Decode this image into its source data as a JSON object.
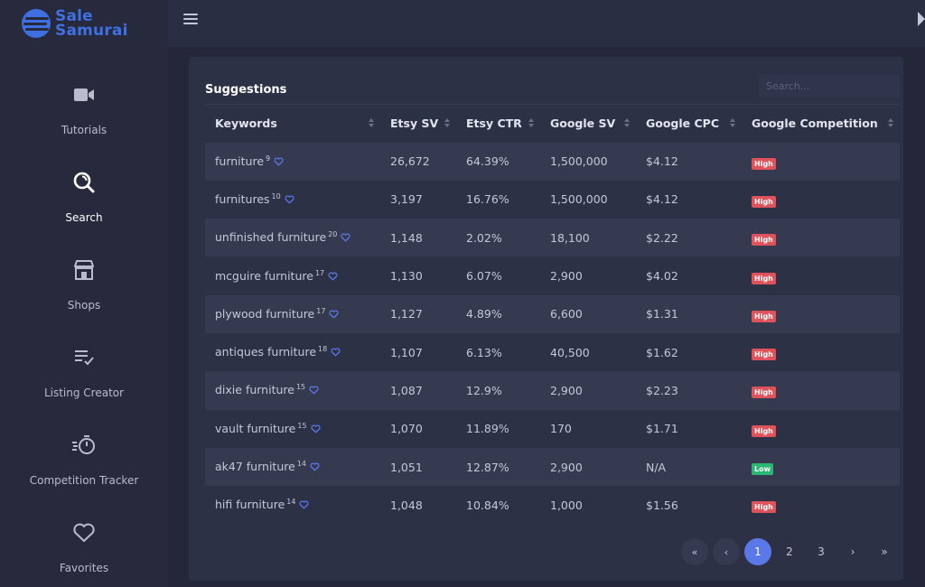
{
  "brand": {
    "name_line1": "Sale",
    "name_line2": "Samurai",
    "color": "#3f6fe0"
  },
  "nav": [
    {
      "label": "Tutorials",
      "icon": "video-camera-icon"
    },
    {
      "label": "Search",
      "icon": "search-icon",
      "active": true
    },
    {
      "label": "Shops",
      "icon": "storefront-icon"
    },
    {
      "label": "Listing Creator",
      "icon": "list-check-icon"
    },
    {
      "label": "Competition Tracker",
      "icon": "stopwatch-icon"
    },
    {
      "label": "Favorites",
      "icon": "heart-icon"
    }
  ],
  "panel": {
    "title": "Suggestions",
    "search_placeholder": "Search..."
  },
  "table": {
    "columns": [
      "Keywords",
      "Etsy SV",
      "Etsy CTR",
      "Google SV",
      "Google CPC",
      "Google Competition"
    ],
    "rows": [
      {
        "keyword": "furniture",
        "count": "9",
        "etsy_sv": "26,672",
        "etsy_ctr": "64.39%",
        "google_sv": "1,500,000",
        "google_cpc": "$4.12",
        "competition": "High"
      },
      {
        "keyword": "furnitures",
        "count": "10",
        "etsy_sv": "3,197",
        "etsy_ctr": "16.76%",
        "google_sv": "1,500,000",
        "google_cpc": "$4.12",
        "competition": "High"
      },
      {
        "keyword": "unfinished furniture",
        "count": "20",
        "etsy_sv": "1,148",
        "etsy_ctr": "2.02%",
        "google_sv": "18,100",
        "google_cpc": "$2.22",
        "competition": "High"
      },
      {
        "keyword": "mcguire furniture",
        "count": "17",
        "etsy_sv": "1,130",
        "etsy_ctr": "6.07%",
        "google_sv": "2,900",
        "google_cpc": "$4.02",
        "competition": "High"
      },
      {
        "keyword": "plywood furniture",
        "count": "17",
        "etsy_sv": "1,127",
        "etsy_ctr": "4.89%",
        "google_sv": "6,600",
        "google_cpc": "$1.31",
        "competition": "High"
      },
      {
        "keyword": "antiques furniture",
        "count": "18",
        "etsy_sv": "1,107",
        "etsy_ctr": "6.13%",
        "google_sv": "40,500",
        "google_cpc": "$1.62",
        "competition": "High"
      },
      {
        "keyword": "dixie furniture",
        "count": "15",
        "etsy_sv": "1,087",
        "etsy_ctr": "12.9%",
        "google_sv": "2,900",
        "google_cpc": "$2.23",
        "competition": "High"
      },
      {
        "keyword": "vault furniture",
        "count": "15",
        "etsy_sv": "1,070",
        "etsy_ctr": "11.89%",
        "google_sv": "170",
        "google_cpc": "$1.71",
        "competition": "High"
      },
      {
        "keyword": "ak47 furniture",
        "count": "14",
        "etsy_sv": "1,051",
        "etsy_ctr": "12.87%",
        "google_sv": "2,900",
        "google_cpc": "N/A",
        "competition": "Low"
      },
      {
        "keyword": "hifi furniture",
        "count": "14",
        "etsy_sv": "1,048",
        "etsy_ctr": "10.84%",
        "google_sv": "1,000",
        "google_cpc": "$1.56",
        "competition": "High"
      }
    ]
  },
  "pagination": {
    "first": "«",
    "prev": "‹",
    "pages": [
      "1",
      "2",
      "3"
    ],
    "current": "1",
    "next": "›",
    "last": "»"
  },
  "colors": {
    "accent": "#5a78e8",
    "high": "#e0525a",
    "low": "#2bb673"
  }
}
